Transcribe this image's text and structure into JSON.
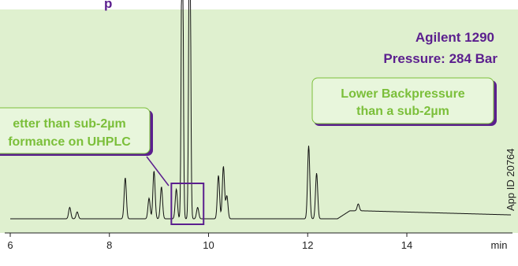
{
  "header": {
    "title_fragment": "p",
    "instrument": "Agilent 1290",
    "pressure": "Pressure: 284 Bar"
  },
  "callouts": {
    "left_line1": "etter than sub-2µm",
    "left_line2": "formance on UHPLC",
    "right_line1": "Lower Backpressure",
    "right_line2": "than a sub-2µm"
  },
  "side_label": "App ID 20764",
  "colors": {
    "plot_background": "#dff0cf",
    "trace": "#111111",
    "header_text": "#5b1f8e",
    "callout_fill": "#e8f6dc",
    "callout_text": "#7bbf3a",
    "highlight_box": "#5b1f8e"
  },
  "chart_data": {
    "type": "line",
    "title": "",
    "xlabel": "",
    "ylabel": "",
    "x_unit": "min",
    "xlim": [
      6,
      15.5
    ],
    "x_ticks": [
      6,
      8,
      10,
      12,
      14
    ],
    "grid": false,
    "series": [
      {
        "peaks": [
          {
            "t": 7.2,
            "h": 0.05
          },
          {
            "t": 7.35,
            "h": 0.03
          },
          {
            "t": 8.32,
            "h": 0.18
          },
          {
            "t": 8.8,
            "h": 0.09
          },
          {
            "t": 8.9,
            "h": 0.21
          },
          {
            "t": 9.05,
            "h": 0.14
          },
          {
            "t": 9.35,
            "h": 0.13
          },
          {
            "t": 9.47,
            "h": 1.6
          },
          {
            "t": 9.62,
            "h": 1.6
          },
          {
            "t": 9.78,
            "h": 0.05
          },
          {
            "t": 10.2,
            "h": 0.19
          },
          {
            "t": 10.3,
            "h": 0.23
          },
          {
            "t": 10.37,
            "h": 0.1
          },
          {
            "t": 12.02,
            "h": 0.32
          },
          {
            "t": 12.18,
            "h": 0.2
          },
          {
            "t": 13.02,
            "h": 0.03
          }
        ]
      }
    ],
    "highlight_window": [
      9.25,
      9.9
    ]
  }
}
